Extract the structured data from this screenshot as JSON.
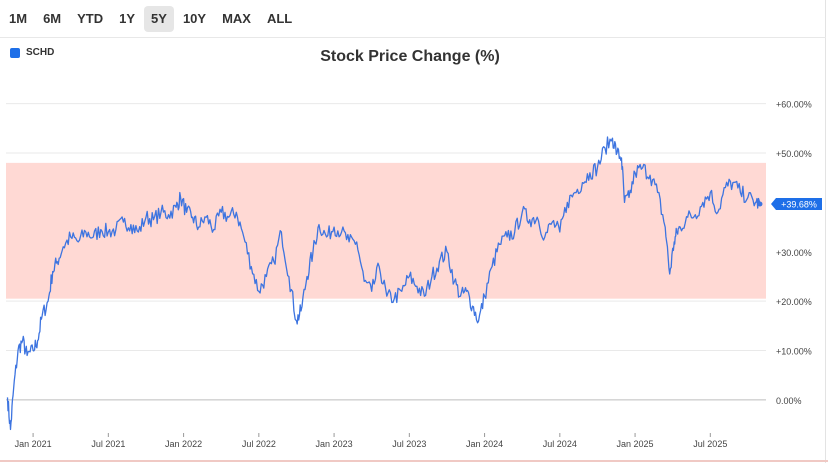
{
  "range_buttons": [
    {
      "label": "1M",
      "active": false
    },
    {
      "label": "6M",
      "active": false
    },
    {
      "label": "YTD",
      "active": false
    },
    {
      "label": "1Y",
      "active": false
    },
    {
      "label": "5Y",
      "active": true
    },
    {
      "label": "10Y",
      "active": false
    },
    {
      "label": "MAX",
      "active": false
    },
    {
      "label": "ALL",
      "active": false
    }
  ],
  "colors": {
    "line": "#3d74e0",
    "band": "#ffd9d4",
    "accent": "#1e6fe8",
    "grid": "#e9e9e9",
    "zero_line": "#bdbdbd"
  },
  "chart_data": {
    "type": "line",
    "title": "Stock Price Change (%)",
    "legend": [
      "SCHD"
    ],
    "legend_position": "top-left",
    "xlabel": "",
    "ylabel": "",
    "ylim": [
      -6.5,
      66
    ],
    "xlim": [
      2020.82,
      2025.87
    ],
    "y_ticks": [
      {
        "value": 60,
        "label": "+60.00%"
      },
      {
        "value": 50,
        "label": "+50.00%"
      },
      {
        "value": 40,
        "label": "+40.00%"
      },
      {
        "value": 30,
        "label": "+30.00%"
      },
      {
        "value": 20,
        "label": "+20.00%"
      },
      {
        "value": 10,
        "label": "+10.00%"
      },
      {
        "value": 0,
        "label": "0.00%"
      }
    ],
    "x_ticks": [
      {
        "value": 2021.0,
        "label": "Jan 2021"
      },
      {
        "value": 2021.5,
        "label": "Jul 2021"
      },
      {
        "value": 2022.0,
        "label": "Jan 2022"
      },
      {
        "value": 2022.5,
        "label": "Jul 2022"
      },
      {
        "value": 2023.0,
        "label": "Jan 2023"
      },
      {
        "value": 2023.5,
        "label": "Jul 2023"
      },
      {
        "value": 2024.0,
        "label": "Jan 2024"
      },
      {
        "value": 2024.5,
        "label": "Jul 2024"
      },
      {
        "value": 2025.0,
        "label": "Jan 2025"
      },
      {
        "value": 2025.5,
        "label": "Jul 2025"
      }
    ],
    "band": {
      "from": 20.5,
      "to": 48
    },
    "current": {
      "value": 39.68,
      "label": "+39.68%"
    },
    "series": [
      {
        "name": "SCHD",
        "x": [
          2020.83,
          2020.85,
          2020.87,
          2020.9,
          2020.93,
          2020.96,
          2021.0,
          2021.03,
          2021.06,
          2021.1,
          2021.13,
          2021.16,
          2021.2,
          2021.25,
          2021.3,
          2021.35,
          2021.4,
          2021.45,
          2021.5,
          2021.55,
          2021.6,
          2021.65,
          2021.7,
          2021.75,
          2021.8,
          2021.85,
          2021.9,
          2021.95,
          2021.98,
          2022.02,
          2022.06,
          2022.1,
          2022.15,
          2022.2,
          2022.25,
          2022.3,
          2022.35,
          2022.4,
          2022.45,
          2022.5,
          2022.55,
          2022.6,
          2022.65,
          2022.7,
          2022.75,
          2022.78,
          2022.82,
          2022.86,
          2022.9,
          2022.95,
          2023.0,
          2023.05,
          2023.1,
          2023.15,
          2023.2,
          2023.25,
          2023.3,
          2023.35,
          2023.4,
          2023.45,
          2023.5,
          2023.55,
          2023.6,
          2023.65,
          2023.7,
          2023.75,
          2023.8,
          2023.84,
          2023.88,
          2023.92,
          2023.96,
          2024.0,
          2024.05,
          2024.1,
          2024.15,
          2024.2,
          2024.25,
          2024.3,
          2024.35,
          2024.4,
          2024.45,
          2024.5,
          2024.55,
          2024.6,
          2024.65,
          2024.7,
          2024.75,
          2024.8,
          2024.85,
          2024.88,
          2024.91,
          2024.93,
          2024.96,
          2025.0,
          2025.05,
          2025.1,
          2025.15,
          2025.2,
          2025.23,
          2025.26,
          2025.28,
          2025.3,
          2025.35,
          2025.4,
          2025.45,
          2025.5,
          2025.55,
          2025.6,
          2025.65,
          2025.7,
          2025.75,
          2025.8,
          2025.83
        ],
        "values": [
          0.5,
          -6,
          2,
          10,
          12,
          9,
          10,
          12,
          17,
          20,
          26,
          28,
          31,
          33,
          32,
          34,
          33,
          34.5,
          34,
          34.5,
          36,
          35.5,
          34,
          37,
          36.5,
          38,
          37.5,
          39,
          41,
          38,
          37,
          35,
          37,
          34.5,
          38,
          37,
          38,
          33,
          27,
          22,
          25,
          28,
          34,
          25,
          16,
          18,
          25,
          30,
          35.5,
          33,
          35,
          34,
          32,
          32,
          24,
          22,
          27,
          21,
          20.5,
          22,
          25,
          23,
          21,
          25,
          28,
          30,
          24,
          21,
          22,
          19,
          16,
          21,
          27,
          31.5,
          33,
          34,
          38,
          36.5,
          37,
          33,
          36,
          34,
          40,
          42,
          44,
          46,
          47,
          51,
          53,
          50,
          49,
          40,
          41,
          46,
          47,
          45.5,
          42,
          35,
          25.5,
          32,
          34,
          35,
          37,
          37.5,
          40,
          42,
          38,
          43,
          44,
          42,
          41,
          40,
          39.68
        ]
      }
    ]
  }
}
